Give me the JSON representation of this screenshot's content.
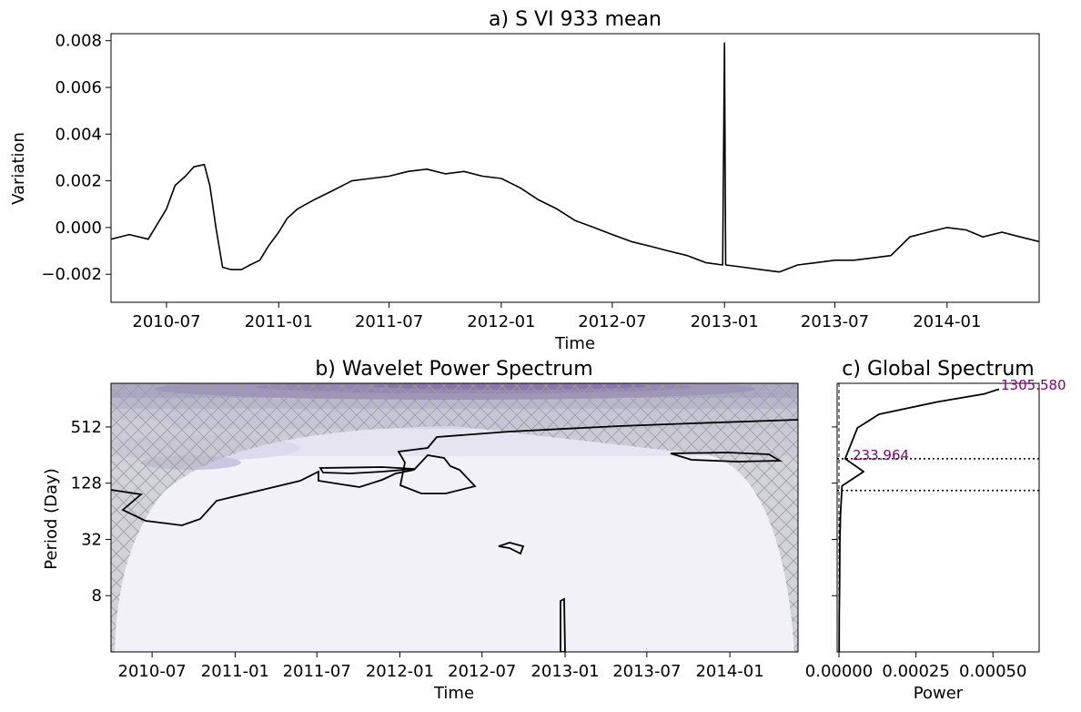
{
  "chart_data": [
    {
      "type": "line",
      "title": "a) S VI 933 mean",
      "xlabel": "Time",
      "ylabel": "Variation",
      "x_ticks": [
        "2010-07",
        "2011-01",
        "2011-07",
        "2012-01",
        "2012-07",
        "2013-01",
        "2013-07",
        "2014-01"
      ],
      "y_ticks": [
        "0.008",
        "0.006",
        "0.004",
        "0.002",
        "0.000",
        "−0.002"
      ],
      "xlim": [
        "2010-04-01",
        "2014-06-01"
      ],
      "ylim": [
        -0.0032,
        0.0083
      ],
      "series": [
        {
          "x": [
            "2010-04-01",
            "2010-05-01",
            "2010-06-01",
            "2010-07-01",
            "2010-07-15",
            "2010-08-01",
            "2010-08-15",
            "2010-09-01",
            "2010-09-10",
            "2010-09-20",
            "2010-10-01",
            "2010-10-15",
            "2010-11-01",
            "2010-11-15",
            "2010-12-01",
            "2010-12-15",
            "2011-01-01",
            "2011-01-15",
            "2011-02-01",
            "2011-03-01",
            "2011-04-01",
            "2011-05-01",
            "2011-06-01",
            "2011-07-01",
            "2011-08-01",
            "2011-09-01",
            "2011-10-01",
            "2011-11-01",
            "2011-12-01",
            "2012-01-01",
            "2012-02-01",
            "2012-03-01",
            "2012-04-01",
            "2012-05-01",
            "2012-06-01",
            "2012-07-01",
            "2012-08-01",
            "2012-09-01",
            "2012-10-01",
            "2012-11-01",
            "2012-12-01",
            "2012-12-29",
            "2013-01-01",
            "2013-01-03",
            "2013-02-01",
            "2013-03-01",
            "2013-04-01",
            "2013-05-01",
            "2013-06-01",
            "2013-07-01",
            "2013-08-01",
            "2013-09-01",
            "2013-10-01",
            "2013-11-01",
            "2013-12-01",
            "2014-01-01",
            "2014-02-01",
            "2014-03-01",
            "2014-04-01",
            "2014-05-01",
            "2014-06-01"
          ],
          "y": [
            -0.0005,
            -0.0003,
            -0.0005,
            0.0008,
            0.0018,
            0.0022,
            0.0026,
            0.0027,
            0.0018,
            0.0,
            -0.0017,
            -0.0018,
            -0.0018,
            -0.0016,
            -0.0014,
            -0.0008,
            -0.0002,
            0.0004,
            0.0008,
            0.0012,
            0.0016,
            0.002,
            0.0021,
            0.0022,
            0.0024,
            0.0025,
            0.0023,
            0.0024,
            0.0022,
            0.0021,
            0.0017,
            0.0012,
            0.0008,
            0.0003,
            0.0,
            -0.0003,
            -0.0006,
            -0.0008,
            -0.001,
            -0.0012,
            -0.0015,
            -0.0016,
            0.0079,
            -0.0016,
            -0.0017,
            -0.0018,
            -0.0019,
            -0.0016,
            -0.0015,
            -0.0014,
            -0.0014,
            -0.0013,
            -0.0012,
            -0.0004,
            -0.0002,
            0.0,
            -0.0001,
            -0.0004,
            -0.0002,
            -0.0004,
            -0.0006
          ]
        }
      ]
    },
    {
      "type": "heatmap",
      "title": "b) Wavelet Power Spectrum",
      "xlabel": "Time",
      "ylabel": "Period (Day)",
      "x_ticks": [
        "2010-07",
        "2011-01",
        "2011-07",
        "2012-01",
        "2012-07",
        "2013-01",
        "2013-07",
        "2014-01"
      ],
      "y_ticks": [
        "512",
        "128",
        "32",
        "8"
      ],
      "y_scale": "log2",
      "ylim": [
        2,
        1500
      ],
      "colormap": "Purples",
      "cone_of_influence": "hatched",
      "significance_contour": "black",
      "colors": {
        "low": "#f2f1f8",
        "mid": "#cfcde6",
        "high": "#5e3c99",
        "coi": "#b8b8c0"
      }
    },
    {
      "type": "line",
      "title": "c) Global Spectrum",
      "xlabel": "Power",
      "x_ticks": [
        "0.00000",
        "0.00025",
        "0.00050"
      ],
      "xlim": [
        0,
        0.00065
      ],
      "y_scale": "log2",
      "series": [
        {
          "x": [
            0.00052,
            0.00047,
            0.00032,
            0.00013,
            6e-05,
            4e-05,
            2e-05,
            8e-05,
            1e-05,
            8e-06,
            5e-06,
            3e-06,
            2e-06,
            1e-06,
            5e-07
          ],
          "y": [
            1300,
            1150,
            950,
            700,
            500,
            340,
            234,
            170,
            120,
            90,
            60,
            30,
            10,
            5,
            2
          ]
        }
      ],
      "reference_lines": [
        234,
        107
      ],
      "annotations": [
        "1305.580",
        "233.964"
      ]
    }
  ]
}
